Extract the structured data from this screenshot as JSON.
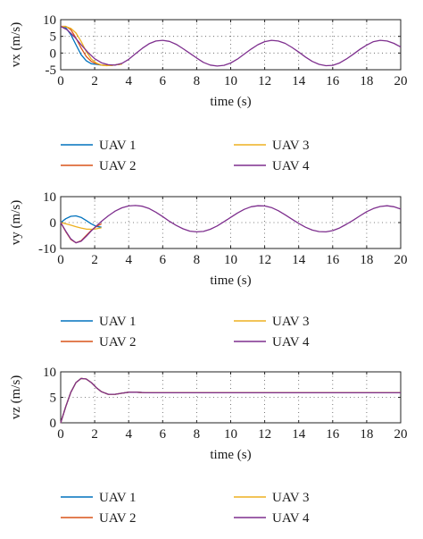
{
  "legend": [
    {
      "label": "UAV 1",
      "color": "#0072BD"
    },
    {
      "label": "UAV 2",
      "color": "#D95319"
    },
    {
      "label": "UAV 3",
      "color": "#EDB120"
    },
    {
      "label": "UAV 4",
      "color": "#7E2F8E"
    }
  ],
  "chart_data": [
    {
      "type": "line",
      "xlabel": "time (s)",
      "ylabel": "vx (m/s)",
      "xlim": [
        0,
        20
      ],
      "ylim": [
        -5,
        10
      ],
      "xticks": [
        0,
        2,
        4,
        6,
        8,
        10,
        12,
        14,
        16,
        18,
        20
      ],
      "yticks": [
        -5,
        0,
        5,
        10
      ],
      "grid": "dotted",
      "legend_position": "below",
      "series": [
        {
          "name": "UAV 1",
          "color": "#0072BD",
          "x": [
            0,
            0.3,
            0.6,
            0.9,
            1.2,
            1.5,
            1.8,
            2.1,
            2.4,
            2.7,
            3.0,
            3.3,
            3.6
          ],
          "y": [
            8.0,
            7.6,
            5.5,
            2.5,
            -0.5,
            -2.3,
            -3.2,
            -3.4,
            -3.6,
            -3.7,
            -3.7,
            -3.5,
            -3.3
          ]
        },
        {
          "name": "UAV 2",
          "color": "#D95319",
          "x": [
            0,
            0.3,
            0.6,
            0.9,
            1.2,
            1.5,
            1.8,
            2.1,
            2.4,
            2.7,
            3.0,
            3.3,
            3.6
          ],
          "y": [
            8.0,
            8.0,
            7.0,
            4.5,
            1.5,
            -1.0,
            -2.5,
            -3.2,
            -3.6,
            -3.7,
            -3.7,
            -3.5,
            -3.3
          ]
        },
        {
          "name": "UAV 3",
          "color": "#EDB120",
          "x": [
            0,
            0.3,
            0.6,
            0.9,
            1.2,
            1.5,
            1.8,
            2.1,
            2.4,
            2.7,
            3.0,
            3.3,
            3.6
          ],
          "y": [
            8.0,
            7.9,
            7.4,
            6.0,
            3.5,
            0.5,
            -1.8,
            -3.0,
            -3.6,
            -3.8,
            -3.7,
            -3.5,
            -3.3
          ]
        },
        {
          "name": "UAV 4",
          "color": "#7E2F8E",
          "x": [
            0,
            0.4,
            0.8,
            1.2,
            1.6,
            2.0,
            2.4,
            2.8,
            3.2,
            3.6,
            4.0,
            4.4,
            4.8,
            5.2,
            5.6,
            6.0,
            6.4,
            6.8,
            7.2,
            7.6,
            8.0,
            8.4,
            8.8,
            9.2,
            9.6,
            10.0,
            10.4,
            10.8,
            11.2,
            11.6,
            12.0,
            12.4,
            12.8,
            13.2,
            13.6,
            14.0,
            14.4,
            14.8,
            15.2,
            15.6,
            16.0,
            16.4,
            16.8,
            17.2,
            17.6,
            18.0,
            18.4,
            18.8,
            19.2,
            19.6,
            20.0
          ],
          "y": [
            8.0,
            6.9,
            4.9,
            2.5,
            0.2,
            -1.7,
            -2.9,
            -3.5,
            -3.6,
            -3.1,
            -1.9,
            -0.2,
            1.4,
            2.8,
            3.6,
            3.8,
            3.5,
            2.6,
            1.3,
            -0.1,
            -1.5,
            -2.8,
            -3.6,
            -3.9,
            -3.7,
            -3.0,
            -1.8,
            -0.3,
            1.2,
            2.5,
            3.4,
            3.8,
            3.6,
            2.9,
            1.7,
            0.3,
            -1.2,
            -2.5,
            -3.4,
            -3.8,
            -3.7,
            -3.0,
            -1.8,
            -0.4,
            1.1,
            2.4,
            3.4,
            3.8,
            3.6,
            2.9,
            1.8
          ]
        }
      ]
    },
    {
      "type": "line",
      "xlabel": "time (s)",
      "ylabel": "vy (m/s)",
      "xlim": [
        0,
        20
      ],
      "ylim": [
        -10,
        10
      ],
      "xticks": [
        0,
        2,
        4,
        6,
        8,
        10,
        12,
        14,
        16,
        18,
        20
      ],
      "yticks": [
        -10,
        0,
        10
      ],
      "grid": "dotted",
      "legend_position": "below",
      "series": [
        {
          "name": "UAV 1",
          "color": "#0072BD",
          "x": [
            0,
            0.3,
            0.6,
            0.9,
            1.2,
            1.5,
            1.8,
            2.1,
            2.4
          ],
          "y": [
            0.0,
            1.5,
            2.4,
            2.6,
            2.0,
            0.8,
            -0.5,
            -1.5,
            -1.8
          ]
        },
        {
          "name": "UAV 2",
          "color": "#D95319",
          "x": [
            0,
            0.3,
            0.6,
            0.9,
            1.2,
            1.5,
            1.8,
            2.1,
            2.4
          ],
          "y": [
            0.0,
            -3.5,
            -6.5,
            -7.8,
            -7.0,
            -5.0,
            -3.0,
            -1.5,
            -0.5
          ]
        },
        {
          "name": "UAV 3",
          "color": "#EDB120",
          "x": [
            0,
            0.3,
            0.6,
            0.9,
            1.2,
            1.5,
            1.8,
            2.1,
            2.4
          ],
          "y": [
            0.0,
            -0.5,
            -1.0,
            -1.6,
            -2.1,
            -2.5,
            -2.6,
            -2.4,
            -2.0
          ]
        },
        {
          "name": "UAV 4",
          "color": "#7E2F8E",
          "x": [
            0,
            0.3,
            0.6,
            0.9,
            1.2,
            1.5,
            1.8,
            2.1,
            2.4,
            2.8,
            3.2,
            3.6,
            4.0,
            4.4,
            4.8,
            5.2,
            5.6,
            6.0,
            6.4,
            6.8,
            7.2,
            7.6,
            8.0,
            8.4,
            8.8,
            9.2,
            9.6,
            10.0,
            10.4,
            10.8,
            11.2,
            11.6,
            12.0,
            12.4,
            12.8,
            13.2,
            13.6,
            14.0,
            14.4,
            14.8,
            15.2,
            15.6,
            16.0,
            16.4,
            16.8,
            17.2,
            17.6,
            18.0,
            18.4,
            18.8,
            19.2,
            19.6,
            20.0
          ],
          "y": [
            0.0,
            -3.3,
            -6.3,
            -7.8,
            -7.2,
            -5.3,
            -3.2,
            -1.3,
            0.5,
            2.6,
            4.4,
            5.7,
            6.4,
            6.6,
            6.3,
            5.4,
            4.0,
            2.3,
            0.5,
            -1.1,
            -2.4,
            -3.3,
            -3.6,
            -3.4,
            -2.6,
            -1.3,
            0.3,
            2.0,
            3.7,
            5.1,
            6.1,
            6.5,
            6.4,
            5.8,
            4.6,
            3.0,
            1.3,
            -0.3,
            -1.8,
            -2.9,
            -3.5,
            -3.6,
            -3.1,
            -2.1,
            -0.7,
            0.9,
            2.6,
            4.2,
            5.4,
            6.2,
            6.5,
            6.1,
            5.2
          ]
        }
      ]
    },
    {
      "type": "line",
      "xlabel": "time (s)",
      "ylabel": "vz (m/s)",
      "xlim": [
        0,
        20
      ],
      "ylim": [
        0,
        10
      ],
      "xticks": [
        0,
        2,
        4,
        6,
        8,
        10,
        12,
        14,
        16,
        18,
        20
      ],
      "yticks": [
        0,
        5,
        10
      ],
      "grid": "dotted",
      "legend_position": "below",
      "series": [
        {
          "name": "UAV 1",
          "color": "#0072BD",
          "x": [
            0,
            0.3,
            0.6,
            0.9,
            1.2,
            1.5,
            1.8,
            2.1,
            2.4,
            2.8,
            3.2,
            3.6,
            4.0,
            4.5,
            5.0,
            6.0,
            8.0,
            10.0,
            12.0,
            14.0,
            16.0,
            18.0,
            20.0
          ],
          "y": [
            0.0,
            3.2,
            6.0,
            7.9,
            8.7,
            8.6,
            7.9,
            6.9,
            6.1,
            5.6,
            5.6,
            5.8,
            6.0,
            6.0,
            5.9,
            5.9,
            5.9,
            5.9,
            5.9,
            5.9,
            5.9,
            5.9,
            5.9
          ]
        },
        {
          "name": "UAV 2",
          "color": "#D95319",
          "x": [
            0,
            0.3,
            0.6,
            0.9,
            1.2,
            1.5,
            1.8,
            2.1,
            2.4,
            2.8,
            3.2,
            3.6,
            4.0,
            4.5,
            5.0,
            6.0,
            8.0,
            10.0,
            12.0,
            14.0,
            16.0,
            18.0,
            20.0
          ],
          "y": [
            0.0,
            3.2,
            6.0,
            7.9,
            8.7,
            8.6,
            7.9,
            6.9,
            6.1,
            5.6,
            5.6,
            5.8,
            6.0,
            6.0,
            5.9,
            5.9,
            5.9,
            5.9,
            5.9,
            5.9,
            5.9,
            5.9,
            5.9
          ]
        },
        {
          "name": "UAV 3",
          "color": "#EDB120",
          "x": [
            0,
            0.3,
            0.6,
            0.9,
            1.2,
            1.5,
            1.8,
            2.1,
            2.4,
            2.8,
            3.2,
            3.6,
            4.0,
            4.5,
            5.0,
            6.0,
            8.0,
            10.0,
            12.0,
            14.0,
            16.0,
            18.0,
            20.0
          ],
          "y": [
            0.0,
            3.2,
            6.0,
            7.9,
            8.7,
            8.6,
            7.9,
            6.9,
            6.1,
            5.6,
            5.6,
            5.8,
            6.0,
            6.0,
            5.9,
            5.9,
            5.9,
            5.9,
            5.9,
            5.9,
            5.9,
            5.9,
            5.9
          ]
        },
        {
          "name": "UAV 4",
          "color": "#7E2F8E",
          "x": [
            0,
            0.3,
            0.6,
            0.9,
            1.2,
            1.5,
            1.8,
            2.1,
            2.4,
            2.8,
            3.2,
            3.6,
            4.0,
            4.5,
            5.0,
            6.0,
            8.0,
            10.0,
            12.0,
            14.0,
            16.0,
            18.0,
            20.0
          ],
          "y": [
            0.0,
            3.2,
            6.0,
            7.9,
            8.7,
            8.6,
            7.9,
            6.9,
            6.1,
            5.6,
            5.6,
            5.8,
            6.0,
            6.0,
            5.9,
            5.9,
            5.9,
            5.9,
            5.9,
            5.9,
            5.9,
            5.9,
            5.9
          ]
        }
      ]
    }
  ]
}
